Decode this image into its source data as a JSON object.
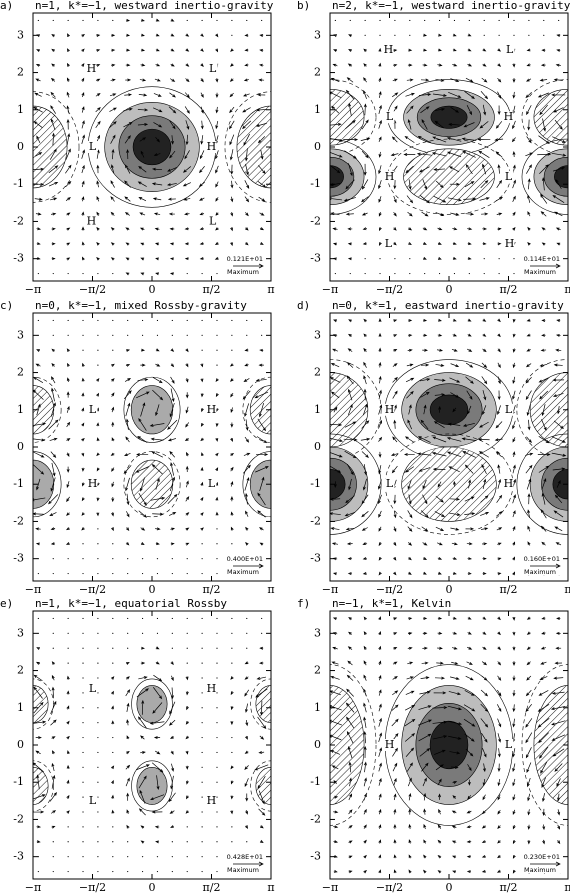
{
  "chart_data": [
    {
      "type": "vector-contour",
      "panel_label": "a)",
      "title": "n=1, k*=−1, westward inertio-gravity",
      "xlim": [
        -3.1416,
        3.1416
      ],
      "ylim": [
        -3.6,
        3.6
      ],
      "xticks": [
        {
          "value": -3.1416,
          "label": "−π"
        },
        {
          "value": -1.5708,
          "label": "−π/2"
        },
        0,
        {
          "value": 1.5708,
          "label": "π/2"
        },
        {
          "value": 3.1416,
          "label": "π"
        }
      ],
      "yticks": [
        -3,
        -2,
        -1,
        0,
        1,
        2,
        3
      ],
      "annotations": [
        {
          "text": "H",
          "x": -1.6,
          "y": 2.1
        },
        {
          "text": "L",
          "x": 1.6,
          "y": 2.1
        },
        {
          "text": "L",
          "x": -1.57,
          "y": 0
        },
        {
          "text": "H",
          "x": 1.57,
          "y": 0
        },
        {
          "text": "H",
          "x": -1.6,
          "y": -2.0
        },
        {
          "text": "L",
          "x": 1.6,
          "y": -2.0
        }
      ],
      "reference_vector": {
        "value": 1.21,
        "label": "0.121E+01"
      },
      "reference_caption": "Maximum"
    },
    {
      "type": "vector-contour",
      "panel_label": "b)",
      "title": "n=2, k*=−1, westward inertio-gravity",
      "xlim": [
        -3.1416,
        3.1416
      ],
      "ylim": [
        -3.6,
        3.6
      ],
      "xticks": [
        {
          "value": -3.1416,
          "label": "−π"
        },
        {
          "value": -1.5708,
          "label": "−π/2"
        },
        0,
        {
          "value": 1.5708,
          "label": "π/2"
        },
        {
          "value": 3.1416,
          "label": "π"
        }
      ],
      "yticks": [
        -3,
        -2,
        -1,
        0,
        1,
        2,
        3
      ],
      "annotations": [
        {
          "text": "H",
          "x": -1.6,
          "y": 2.6
        },
        {
          "text": "L",
          "x": 1.6,
          "y": 2.6
        },
        {
          "text": "L",
          "x": -1.57,
          "y": 0.8
        },
        {
          "text": "H",
          "x": 1.57,
          "y": 0.8
        },
        {
          "text": "H",
          "x": -1.57,
          "y": -0.8
        },
        {
          "text": "L",
          "x": 1.57,
          "y": -0.8
        },
        {
          "text": "L",
          "x": -1.6,
          "y": -2.6
        },
        {
          "text": "H",
          "x": 1.6,
          "y": -2.6
        }
      ],
      "reference_vector": {
        "value": 1.14,
        "label": "0.114E+01"
      },
      "reference_caption": "Maximum"
    },
    {
      "type": "vector-contour",
      "panel_label": "c)",
      "title": "n=0, k*=−1, mixed Rossby-gravity",
      "xlim": [
        -3.1416,
        3.1416
      ],
      "ylim": [
        -3.6,
        3.6
      ],
      "xticks": [
        {
          "value": -3.1416,
          "label": "−π"
        },
        {
          "value": -1.5708,
          "label": "−π/2"
        },
        0,
        {
          "value": 1.5708,
          "label": "π/2"
        },
        {
          "value": 3.1416,
          "label": "π"
        }
      ],
      "yticks": [
        -3,
        -2,
        -1,
        0,
        1,
        2,
        3
      ],
      "annotations": [
        {
          "text": "L",
          "x": -1.57,
          "y": 1.0
        },
        {
          "text": "H",
          "x": 1.57,
          "y": 1.0
        },
        {
          "text": "H",
          "x": -1.57,
          "y": -1.0
        },
        {
          "text": "L",
          "x": 1.57,
          "y": -1.0
        }
      ],
      "reference_vector": {
        "value": 4.0,
        "label": "0.400E+01"
      },
      "reference_caption": "Maximum"
    },
    {
      "type": "vector-contour",
      "panel_label": "d)",
      "title": "n=0, k*=1, eastward inertio-gravity",
      "xlim": [
        -3.1416,
        3.1416
      ],
      "ylim": [
        -3.6,
        3.6
      ],
      "xticks": [
        {
          "value": -3.1416,
          "label": "−π"
        },
        {
          "value": -1.5708,
          "label": "−π/2"
        },
        0,
        {
          "value": 1.5708,
          "label": "π/2"
        },
        {
          "value": 3.1416,
          "label": "π"
        }
      ],
      "yticks": [
        -3,
        -2,
        -1,
        0,
        1,
        2,
        3
      ],
      "annotations": [
        {
          "text": "H",
          "x": -1.57,
          "y": 1.0
        },
        {
          "text": "L",
          "x": 1.57,
          "y": 1.0
        },
        {
          "text": "L",
          "x": -1.57,
          "y": -1.0
        },
        {
          "text": "H",
          "x": 1.57,
          "y": -1.0
        }
      ],
      "reference_vector": {
        "value": 1.6,
        "label": "0.160E+01"
      },
      "reference_caption": "Maximum"
    },
    {
      "type": "vector-contour",
      "panel_label": "e)",
      "title": "n=1, k*=−1, equatorial Rossby",
      "xlim": [
        -3.1416,
        3.1416
      ],
      "ylim": [
        -3.6,
        3.6
      ],
      "xticks": [
        {
          "value": -3.1416,
          "label": "−π"
        },
        {
          "value": -1.5708,
          "label": "−π/2"
        },
        0,
        {
          "value": 1.5708,
          "label": "π/2"
        },
        {
          "value": 3.1416,
          "label": "π"
        }
      ],
      "yticks": [
        -3,
        -2,
        -1,
        0,
        1,
        2,
        3
      ],
      "annotations": [
        {
          "text": "L",
          "x": -1.57,
          "y": 1.5
        },
        {
          "text": "H",
          "x": 1.57,
          "y": 1.5
        },
        {
          "text": "L",
          "x": -1.57,
          "y": -1.5
        },
        {
          "text": "H",
          "x": 1.57,
          "y": -1.5
        }
      ],
      "reference_vector": {
        "value": 4.28,
        "label": "0.428E+01"
      },
      "reference_caption": "Maximum"
    },
    {
      "type": "vector-contour",
      "panel_label": "f)",
      "title": "n=−1, k*=1, Kelvin",
      "xlim": [
        -3.1416,
        3.1416
      ],
      "ylim": [
        -3.6,
        3.6
      ],
      "xticks": [
        {
          "value": -3.1416,
          "label": "−π"
        },
        {
          "value": -1.5708,
          "label": "−π/2"
        },
        0,
        {
          "value": 1.5708,
          "label": "π/2"
        },
        {
          "value": 3.1416,
          "label": "π"
        }
      ],
      "yticks": [
        -3,
        -2,
        -1,
        0,
        1,
        2,
        3
      ],
      "annotations": [
        {
          "text": "H",
          "x": -1.57,
          "y": 0
        },
        {
          "text": "L",
          "x": 1.57,
          "y": 0
        }
      ],
      "reference_vector": {
        "value": 2.3,
        "label": "0.230E+01"
      },
      "reference_caption": "Maximum"
    }
  ]
}
